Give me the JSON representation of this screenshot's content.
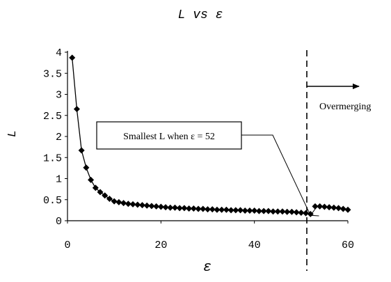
{
  "chart_data": {
    "type": "scatter",
    "title": "L vs ε",
    "xlabel": "ε",
    "ylabel": "L",
    "xlim": [
      0,
      60
    ],
    "ylim": [
      0,
      4
    ],
    "xticks": [
      0,
      20,
      40,
      60
    ],
    "xtick_labels": [
      "0",
      "20",
      "40",
      "60"
    ],
    "yticks": [
      0,
      0.5,
      1,
      1.5,
      2,
      2.5,
      3,
      3.5,
      4
    ],
    "ytick_labels": [
      "0",
      "0.5",
      "1",
      "1.5",
      "2",
      "2.5",
      "3",
      "3.5",
      "4"
    ],
    "grid": false,
    "marker": "diamond",
    "color": "#000000",
    "series": [
      {
        "x": [
          1,
          2,
          3,
          4,
          5,
          6,
          7,
          8,
          9,
          10,
          11,
          12,
          13,
          14,
          15,
          16,
          17,
          18,
          19,
          20,
          21,
          22,
          23,
          24,
          25,
          26,
          27,
          28,
          29,
          30,
          31,
          32,
          33,
          34,
          35,
          36,
          37,
          38,
          39,
          40,
          41,
          42,
          43,
          44,
          45,
          46,
          47,
          48,
          49,
          50,
          51,
          52
        ],
        "y": [
          3.87,
          2.65,
          1.67,
          1.26,
          0.97,
          0.78,
          0.68,
          0.6,
          0.52,
          0.46,
          0.44,
          0.42,
          0.4,
          0.39,
          0.38,
          0.37,
          0.36,
          0.35,
          0.34,
          0.33,
          0.32,
          0.31,
          0.31,
          0.3,
          0.3,
          0.29,
          0.29,
          0.28,
          0.28,
          0.27,
          0.27,
          0.26,
          0.26,
          0.26,
          0.25,
          0.25,
          0.25,
          0.24,
          0.24,
          0.24,
          0.23,
          0.23,
          0.23,
          0.22,
          0.22,
          0.22,
          0.21,
          0.21,
          0.2,
          0.19,
          0.18,
          0.16
        ]
      },
      {
        "x": [
          53,
          54,
          55,
          56,
          57,
          58,
          59,
          60
        ],
        "y": [
          0.34,
          0.34,
          0.33,
          0.32,
          0.31,
          0.3,
          0.28,
          0.26
        ]
      }
    ],
    "threshold": {
      "x": 52,
      "label": "Overmerging"
    },
    "annotation": {
      "text": "Smallest L when ε = 52",
      "point": [
        52,
        0.16
      ]
    }
  }
}
